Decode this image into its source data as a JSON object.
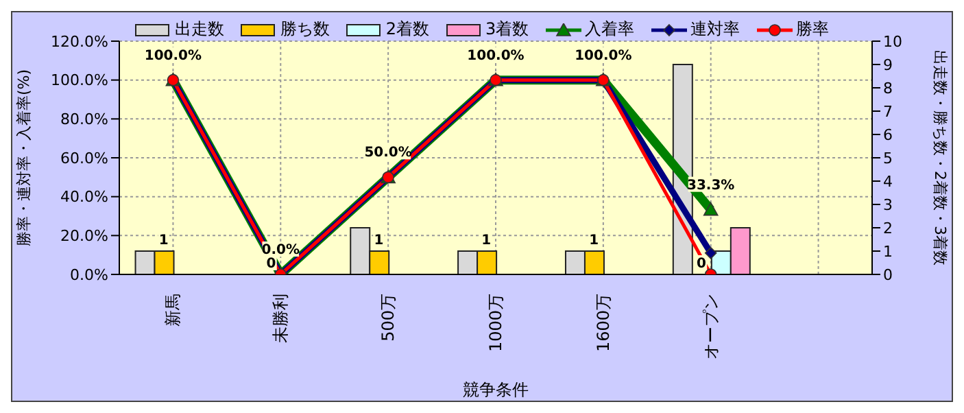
{
  "chart_data": {
    "type": "bar",
    "xlabel": "競争条件",
    "ylabel": "勝率・連対率・入着率(%)",
    "y2label": "出走数・勝ち数・2着数・3着数",
    "categories": [
      "新馬",
      "未勝利",
      "500万",
      "1000万",
      "1600万",
      "オープン",
      null
    ],
    "series": [
      {
        "name": "出走数",
        "axis": "y2",
        "color": "#d9d9d9",
        "values": [
          1,
          0,
          2,
          1,
          1,
          9,
          null
        ]
      },
      {
        "name": "勝ち数",
        "axis": "y2",
        "color": "#ffcc00",
        "values": [
          1,
          0,
          1,
          1,
          1,
          0,
          null
        ],
        "value_labels": [
          "1",
          "0",
          "1",
          "1",
          "1",
          "0",
          null
        ]
      },
      {
        "name": "2着数",
        "axis": "y2",
        "color": "#ccffff",
        "values": [
          0,
          0,
          0,
          0,
          0,
          1,
          null
        ]
      },
      {
        "name": "3着数",
        "axis": "y2",
        "color": "#ff99cc",
        "values": [
          0,
          0,
          0,
          0,
          0,
          2,
          null
        ]
      },
      {
        "name": "入着率",
        "type": "line",
        "axis": "y",
        "color": "#008000",
        "marker": "triangle",
        "values": [
          100,
          0,
          50,
          100,
          100,
          33.3,
          null
        ],
        "value_labels": [
          "100.0%",
          "0.0%",
          "50.0%",
          "100.0%",
          "100.0%",
          "33.3%",
          null
        ]
      },
      {
        "name": "連対率",
        "type": "line",
        "axis": "y",
        "color": "#000080",
        "marker": "diamond",
        "values": [
          100,
          0,
          50,
          100,
          100,
          11,
          null
        ]
      },
      {
        "name": "勝率",
        "type": "line",
        "axis": "y",
        "color": "#ff0000",
        "marker": "circle",
        "values": [
          100,
          0,
          50,
          100,
          100,
          0,
          null
        ]
      }
    ],
    "ylim": [
      0,
      120
    ],
    "yticks": [
      {
        "value": 0,
        "label": "0.0%"
      },
      {
        "value": 20,
        "label": "20.0%"
      },
      {
        "value": 40,
        "label": "40.0%"
      },
      {
        "value": 60,
        "label": "60.0%"
      },
      {
        "value": 80,
        "label": "80.0%"
      },
      {
        "value": 100,
        "label": "100.0%"
      },
      {
        "value": 120,
        "label": "120.0%"
      }
    ],
    "y2lim": [
      0,
      10
    ],
    "y2ticks": [
      0,
      1,
      2,
      3,
      4,
      5,
      6,
      7,
      8,
      9,
      10
    ],
    "grid": true,
    "legend": "top"
  }
}
